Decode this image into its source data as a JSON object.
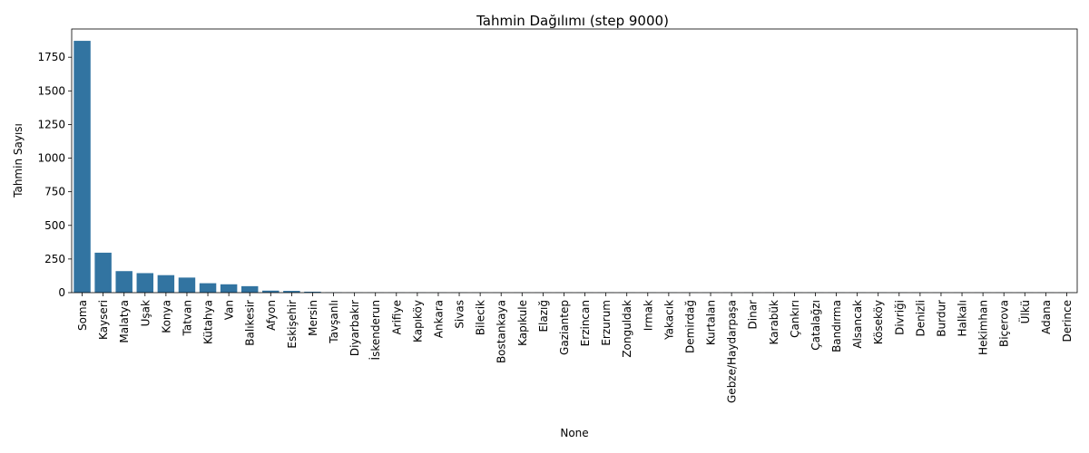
{
  "chart_data": {
    "type": "bar",
    "title": "Tahmin Dağılımı (step 9000)",
    "xlabel": "None",
    "ylabel": "Tahmin Sayısı",
    "ylim": [
      0,
      1960
    ],
    "yticks": [
      0,
      250,
      500,
      750,
      1000,
      1250,
      1500,
      1750
    ],
    "grid": false,
    "bar_color": "#3274a1",
    "categories": [
      "Soma",
      "Kayseri",
      "Malatya",
      "Uşak",
      "Konya",
      "Tatvan",
      "Kütahya",
      "Van",
      "Balıkesir",
      "Afyon",
      "Eskişehir",
      "Mersin",
      "Tavşanlı",
      "Diyarbakır",
      "İskenderun",
      "Arifiye",
      "Kapıköy",
      "Ankara",
      "Sivas",
      "Bilecik",
      "Bostankaya",
      "Kapıkule",
      "Elazığ",
      "Gaziantep",
      "Erzincan",
      "Erzurum",
      "Zonguldak",
      "Irmak",
      "Yakacık",
      "Demirdağ",
      "Kurtalan",
      "Gebze/Haydarpaşa",
      "Dinar",
      "Karabük",
      "Çankırı",
      "Çatalağzı",
      "Bandırma",
      "Alsancak",
      "Köseköy",
      "Divriği",
      "Denizli",
      "Burdur",
      "Halkalı",
      "Hekimhan",
      "Biçerova",
      "Ülkü",
      "Adana",
      "Derince"
    ],
    "values": [
      1872,
      297,
      160,
      145,
      130,
      112,
      70,
      62,
      48,
      15,
      13,
      7,
      2,
      1,
      1,
      1,
      1,
      1,
      1,
      1,
      1,
      1,
      1,
      1,
      1,
      1,
      1,
      1,
      1,
      1,
      1,
      1,
      1,
      1,
      1,
      1,
      1,
      1,
      1,
      1,
      1,
      1,
      1,
      1,
      1,
      1,
      1,
      1
    ]
  }
}
